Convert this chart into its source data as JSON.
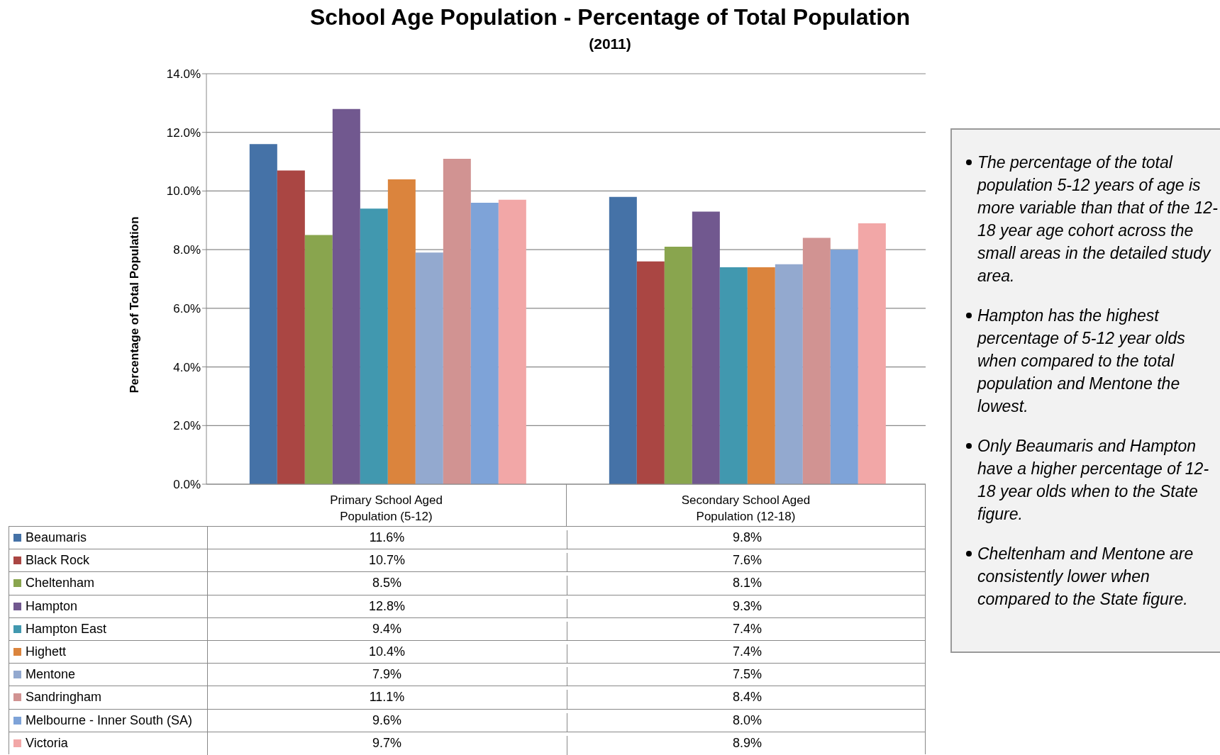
{
  "chart_data": {
    "type": "bar",
    "title": "School Age Population - Percentage of Total Population",
    "subtitle": "(2011)",
    "ylabel": "Percentage of Total Population",
    "categories": [
      "Primary School Aged Population (5-12)",
      "Secondary School Aged Population (12-18)"
    ],
    "series": [
      {
        "name": "Beaumaris",
        "color": "#4572a7",
        "values": [
          11.6,
          9.8
        ],
        "value_labels": [
          "11.6%",
          "9.8%"
        ]
      },
      {
        "name": "Black Rock",
        "color": "#aa4643",
        "values": [
          10.7,
          7.6
        ],
        "value_labels": [
          "10.7%",
          "7.6%"
        ]
      },
      {
        "name": "Cheltenham",
        "color": "#89a54e",
        "values": [
          8.5,
          8.1
        ],
        "value_labels": [
          "8.5%",
          "8.1%"
        ]
      },
      {
        "name": "Hampton",
        "color": "#71588f",
        "values": [
          12.8,
          9.3
        ],
        "value_labels": [
          "12.8%",
          "9.3%"
        ]
      },
      {
        "name": "Hampton East",
        "color": "#4198af",
        "values": [
          9.4,
          7.4
        ],
        "value_labels": [
          "9.4%",
          "7.4%"
        ]
      },
      {
        "name": "Highett",
        "color": "#db843d",
        "values": [
          10.4,
          7.4
        ],
        "value_labels": [
          "10.4%",
          "7.4%"
        ]
      },
      {
        "name": "Mentone",
        "color": "#93a9cf",
        "values": [
          7.9,
          7.5
        ],
        "value_labels": [
          "7.9%",
          "7.5%"
        ]
      },
      {
        "name": "Sandringham",
        "color": "#d19392",
        "values": [
          11.1,
          8.4
        ],
        "value_labels": [
          "11.1%",
          "8.4%"
        ]
      },
      {
        "name": "Melbourne - Inner South (SA)",
        "color": "#7ea3d8",
        "values": [
          9.6,
          8.0
        ],
        "value_labels": [
          "9.6%",
          "8.0%"
        ]
      },
      {
        "name": "Victoria",
        "color": "#f2a7a7",
        "values": [
          9.7,
          8.9
        ],
        "value_labels": [
          "9.7%",
          "8.9%"
        ]
      }
    ],
    "ylim": [
      0,
      14
    ],
    "yticks": [
      {
        "value": 0,
        "label": "0.0%"
      },
      {
        "value": 2,
        "label": "2.0%"
      },
      {
        "value": 4,
        "label": "4.0%"
      },
      {
        "value": 6,
        "label": "6.0%"
      },
      {
        "value": 8,
        "label": "8.0%"
      },
      {
        "value": 10,
        "label": "10.0%"
      },
      {
        "value": 12,
        "label": "12.0%"
      },
      {
        "value": 14,
        "label": "14.0%"
      }
    ],
    "grid": "y",
    "legend": "bottom",
    "annotations": [
      "The percentage of the total population 5-12 years of age is more variable than that of the 12-18 year age cohort across the small areas in the detailed study area.",
      "Hampton has the highest percentage of 5-12 year olds when compared to the total population and Mentone the lowest.",
      "Only Beaumaris and Hampton have a higher percentage of 12-18 year olds when to the State figure.",
      "Cheltenham and Mentone are consistently lower when compared to the State figure."
    ]
  }
}
